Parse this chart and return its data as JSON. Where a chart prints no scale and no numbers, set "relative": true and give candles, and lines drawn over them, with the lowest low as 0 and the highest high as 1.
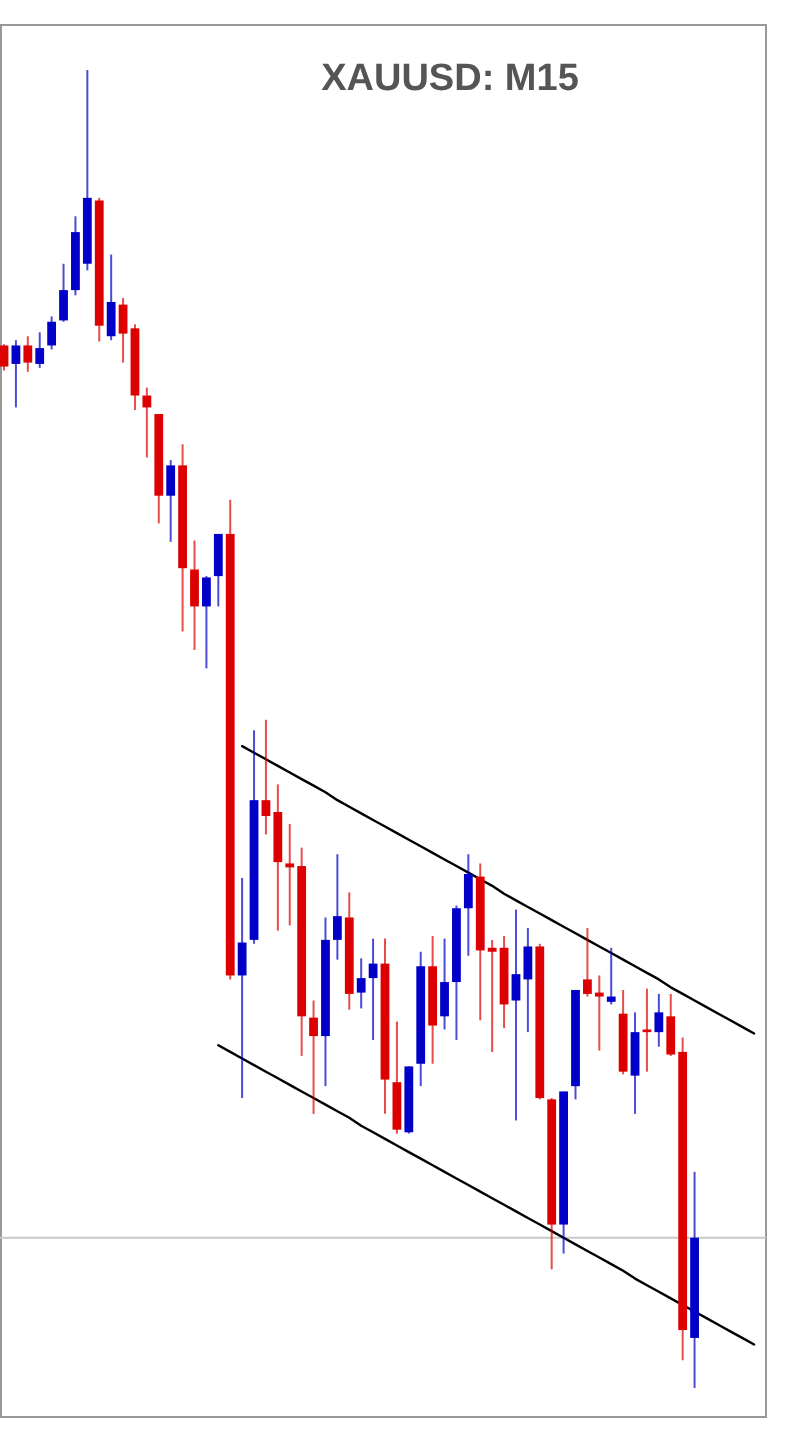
{
  "chart_data": {
    "type": "candlestick",
    "title": "XAUUSD: M15",
    "relative": true,
    "categories": [
      null,
      null,
      null,
      null,
      null,
      null,
      null,
      null,
      null,
      null,
      null,
      null,
      null,
      null,
      null,
      null,
      null,
      null,
      null,
      null,
      null,
      null,
      null,
      null,
      null,
      null,
      null,
      null,
      null,
      null,
      null,
      null,
      null,
      null,
      null,
      null,
      null,
      null,
      null,
      null,
      null,
      null,
      null,
      null,
      null,
      null,
      null,
      null,
      null,
      null,
      null,
      null,
      null,
      null,
      null,
      null,
      null,
      null,
      null,
      null,
      null,
      null,
      null,
      null
    ],
    "ohlc": [
      [
        0.791,
        0.792,
        0.772,
        0.775
      ],
      [
        0.777,
        0.795,
        0.744,
        0.791
      ],
      [
        0.791,
        0.798,
        0.771,
        0.778
      ],
      [
        0.777,
        0.801,
        0.774,
        0.789
      ],
      [
        0.791,
        0.813,
        0.788,
        0.809
      ],
      [
        0.81,
        0.853,
        0.809,
        0.833
      ],
      [
        0.833,
        0.889,
        0.829,
        0.877
      ],
      [
        0.853,
        1,
        0.848,
        0.903
      ],
      [
        0.901,
        0.903,
        0.794,
        0.806
      ],
      [
        0.798,
        0.86,
        0.795,
        0.824
      ],
      [
        0.822,
        0.827,
        0.778,
        0.8
      ],
      [
        0.804,
        0.807,
        0.742,
        0.753
      ],
      [
        0.753,
        0.759,
        0.706,
        0.744
      ],
      [
        0.739,
        0.739,
        0.656,
        0.677
      ],
      [
        0.677,
        0.704,
        0.642,
        0.7
      ],
      [
        0.7,
        0.716,
        0.574,
        0.622
      ],
      [
        0.621,
        0.643,
        0.56,
        0.593
      ],
      [
        0.593,
        0.616,
        0.546,
        0.615
      ],
      [
        0.616,
        0.648,
        0.593,
        0.648
      ],
      [
        0.648,
        0.674,
        0.31,
        0.313
      ],
      [
        0.313,
        0.387,
        0.22,
        0.338
      ],
      [
        0.34,
        0.499,
        0.337,
        0.446
      ],
      [
        0.446,
        0.507,
        0.42,
        0.434
      ],
      [
        0.437,
        0.458,
        0.347,
        0.399
      ],
      [
        0.398,
        0.428,
        0.351,
        0.395
      ],
      [
        0.396,
        0.41,
        0.252,
        0.282
      ],
      [
        0.281,
        0.294,
        0.208,
        0.267
      ],
      [
        0.267,
        0.357,
        0.229,
        0.34
      ],
      [
        0.34,
        0.405,
        0.325,
        0.358
      ],
      [
        0.357,
        0.376,
        0.287,
        0.299
      ],
      [
        0.3,
        0.326,
        0.288,
        0.311
      ],
      [
        0.311,
        0.341,
        0.264,
        0.322
      ],
      [
        0.322,
        0.341,
        0.208,
        0.234
      ],
      [
        0.232,
        0.278,
        0.193,
        0.196
      ],
      [
        0.194,
        0.244,
        0.193,
        0.244
      ],
      [
        0.246,
        0.331,
        0.229,
        0.32
      ],
      [
        0.32,
        0.343,
        0.246,
        0.275
      ],
      [
        0.282,
        0.341,
        0.272,
        0.308
      ],
      [
        0.308,
        0.366,
        0.264,
        0.364
      ],
      [
        0.364,
        0.405,
        0.328,
        0.39
      ],
      [
        0.388,
        0.398,
        0.279,
        0.332
      ],
      [
        0.334,
        0.34,
        0.255,
        0.331
      ],
      [
        0.334,
        0.343,
        0.273,
        0.291
      ],
      [
        0.294,
        0.363,
        0.203,
        0.314
      ],
      [
        0.31,
        0.349,
        0.27,
        0.335
      ],
      [
        0.335,
        0.337,
        0.219,
        0.22
      ],
      [
        0.219,
        0.22,
        0.09,
        0.124
      ],
      [
        0.124,
        0.225,
        0.102,
        0.225
      ],
      [
        0.229,
        0.302,
        0.219,
        0.302
      ],
      [
        0.31,
        0.349,
        0.297,
        0.299
      ],
      [
        0.3,
        0.313,
        0.256,
        0.297
      ],
      [
        0.293,
        0.334,
        0.291,
        0.297
      ],
      [
        0.284,
        0.302,
        0.238,
        0.24
      ],
      [
        0.237,
        0.285,
        0.208,
        0.27
      ],
      [
        0.272,
        0.303,
        0.24,
        0.27
      ],
      [
        0.27,
        0.299,
        0.259,
        0.285
      ],
      [
        0.282,
        0.299,
        0.252,
        0.253
      ],
      [
        0.255,
        0.266,
        0.021,
        0.044
      ],
      [
        0.038,
        0.164,
        0,
        0.114
      ],
      null,
      null,
      null,
      null,
      null
    ],
    "colors": [
      "#dd0000",
      "#0000c8",
      "#dd0000",
      "#0000c8",
      "#0000c8",
      "#0000c8",
      "#0000c8",
      "#0000c8",
      "#dd0000",
      "#0000c8",
      "#dd0000",
      "#dd0000",
      "#dd0000",
      "#dd0000",
      "#0000c8",
      "#dd0000",
      "#dd0000",
      "#0000c8",
      "#0000c8",
      "#dd0000",
      "#0000c8",
      "#0000c8",
      "#dd0000",
      "#dd0000",
      "#dd0000",
      "#dd0000",
      "#dd0000",
      "#0000c8",
      "#0000c8",
      "#dd0000",
      "#0000c8",
      "#0000c8",
      "#dd0000",
      "#dd0000",
      "#0000c8",
      "#0000c8",
      "#dd0000",
      "#0000c8",
      "#0000c8",
      "#0000c8",
      "#dd0000",
      "#dd0000",
      "#dd0000",
      "#0000c8",
      "#0000c8",
      "#dd0000",
      "#dd0000",
      "#0000c8",
      "#0000c8",
      "#dd0000",
      "#dd0000",
      "#0000c8",
      "#dd0000",
      "#0000c8",
      "#dd0000",
      "#0000c8",
      "#dd0000",
      "#dd0000",
      "#0000c8",
      null,
      null,
      null,
      null,
      null
    ],
    "series": [
      {
        "type": "line",
        "color": "#000000",
        "values": [
          null,
          null,
          null,
          null,
          null,
          null,
          null,
          null,
          null,
          null,
          null,
          null,
          null,
          null,
          null,
          null,
          null,
          null,
          null,
          null,
          0.487,
          0.482,
          0.477,
          0.472,
          0.467,
          0.462,
          0.457,
          0.452,
          0.446,
          0.441,
          0.436,
          0.431,
          0.426,
          0.421,
          0.416,
          0.411,
          0.406,
          0.401,
          0.396,
          0.391,
          0.386,
          0.381,
          0.375,
          0.37,
          0.365,
          0.36,
          0.355,
          0.35,
          0.345,
          0.34,
          0.335,
          0.33,
          0.325,
          0.32,
          0.315,
          0.31,
          0.304,
          0.299,
          0.294,
          0.289,
          0.284,
          0.279,
          0.274,
          0.269
        ]
      },
      {
        "type": "line",
        "color": "#000000",
        "values": [
          null,
          null,
          null,
          null,
          null,
          null,
          null,
          null,
          null,
          null,
          null,
          null,
          null,
          null,
          null,
          null,
          null,
          null,
          0.26,
          0.255,
          0.25,
          0.245,
          0.24,
          0.235,
          0.23,
          0.225,
          0.22,
          0.215,
          0.21,
          0.205,
          0.199,
          0.194,
          0.189,
          0.184,
          0.179,
          0.174,
          0.169,
          0.164,
          0.159,
          0.154,
          0.149,
          0.144,
          0.139,
          0.134,
          0.129,
          0.124,
          0.119,
          0.114,
          0.109,
          0.104,
          0.099,
          0.094,
          0.089,
          0.083,
          0.078,
          0.073,
          0.068,
          0.063,
          0.058,
          0.053,
          0.048,
          0.043,
          0.038,
          0.033
        ]
      }
    ],
    "ref_lines": [
      {
        "axis": "y",
        "value": 0.114,
        "color": "#c8c8c8"
      }
    ]
  }
}
